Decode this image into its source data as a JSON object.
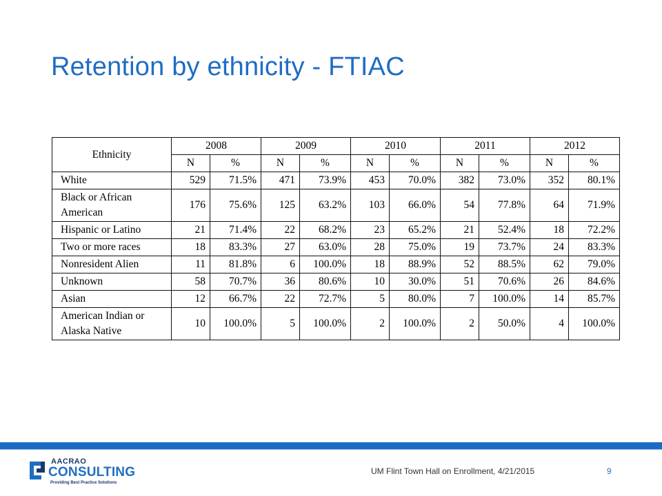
{
  "slide": {
    "title": "Retention by ethnicity - FTIAC"
  },
  "table": {
    "ethnicity_header": "Ethnicity",
    "years": [
      "2008",
      "2009",
      "2010",
      "2011",
      "2012"
    ],
    "subheaders": {
      "n": "N",
      "pct": "%"
    },
    "rows": [
      {
        "ethnicity": "White",
        "cells": [
          "529",
          "71.5%",
          "471",
          "73.9%",
          "453",
          "70.0%",
          "382",
          "73.0%",
          "352",
          "80.1%"
        ]
      },
      {
        "ethnicity": "Black or African American",
        "cells": [
          "176",
          "75.6%",
          "125",
          "63.2%",
          "103",
          "66.0%",
          "54",
          "77.8%",
          "64",
          "71.9%"
        ]
      },
      {
        "ethnicity": "Hispanic or Latino",
        "cells": [
          "21",
          "71.4%",
          "22",
          "68.2%",
          "23",
          "65.2%",
          "21",
          "52.4%",
          "18",
          "72.2%"
        ]
      },
      {
        "ethnicity": "Two or more races",
        "cells": [
          "18",
          "83.3%",
          "27",
          "63.0%",
          "28",
          "75.0%",
          "19",
          "73.7%",
          "24",
          "83.3%"
        ]
      },
      {
        "ethnicity": "Nonresident Alien",
        "cells": [
          "11",
          "81.8%",
          "6",
          "100.0%",
          "18",
          "88.9%",
          "52",
          "88.5%",
          "62",
          "79.0%"
        ]
      },
      {
        "ethnicity": "Unknown",
        "cells": [
          "58",
          "70.7%",
          "36",
          "80.6%",
          "10",
          "30.0%",
          "51",
          "70.6%",
          "26",
          "84.6%"
        ]
      },
      {
        "ethnicity": "Asian",
        "cells": [
          "12",
          "66.7%",
          "22",
          "72.7%",
          "5",
          "80.0%",
          "7",
          "100.0%",
          "14",
          "85.7%"
        ]
      },
      {
        "ethnicity": "American Indian or Alaska Native",
        "cells": [
          "10",
          "100.0%",
          "5",
          "100.0%",
          "2",
          "100.0%",
          "2",
          "50.0%",
          "4",
          "100.0%"
        ]
      }
    ]
  },
  "footer": {
    "logo": {
      "small_text": "AACRAO",
      "big_text": "CONSULTING",
      "tagline": "Providing Best Practice Solutions"
    },
    "caption": "UM Flint Town Hall on Enrollment, 4/21/2015",
    "page_number": "9"
  },
  "colors": {
    "title": "#1f6dc4",
    "footer_bar": "#1b6bc6",
    "logo_dark": "#1a3a6b"
  }
}
